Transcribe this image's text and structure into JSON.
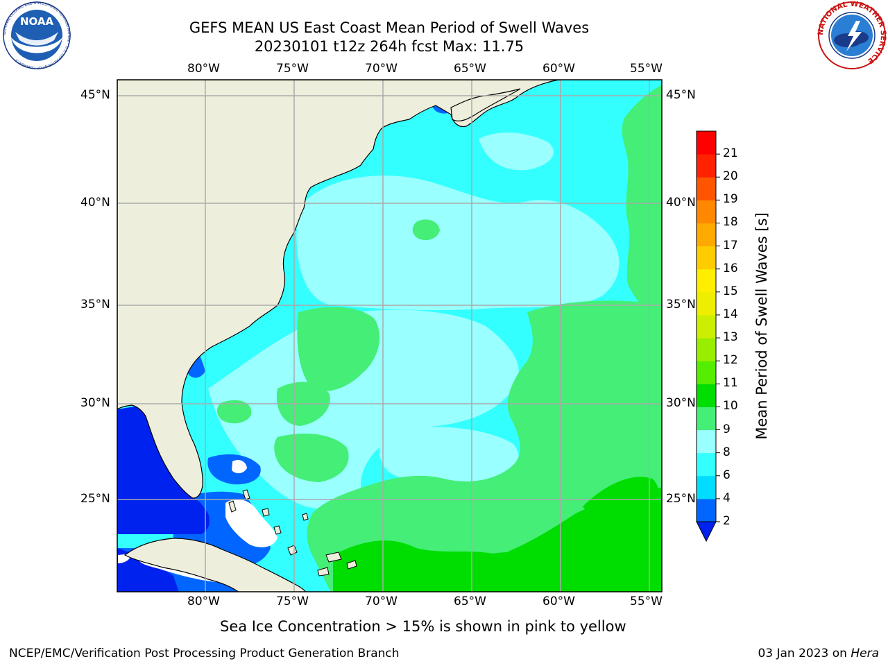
{
  "title": {
    "line1": "GEFS MEAN US East Coast Mean Period of Swell Waves",
    "line2": "20230101 t12z 264h fcst   Max: 11.75"
  },
  "map": {
    "lon_labels": [
      "80°W",
      "75°W",
      "70°W",
      "65°W",
      "60°W",
      "55°W"
    ],
    "lat_labels": [
      "45°N",
      "40°N",
      "35°N",
      "30°N",
      "25°N"
    ],
    "colors": {
      "land": "#EEEEDD",
      "grid": "#AAAAAA",
      "no_data": "#FFFFFF"
    }
  },
  "colorbar": {
    "label": "Mean Period of Swell Waves [s]",
    "tick_labels": [
      "2",
      "4",
      "6",
      "8",
      "9",
      "10",
      "11",
      "12",
      "13",
      "14",
      "15",
      "16",
      "17",
      "18",
      "19",
      "20",
      "21"
    ],
    "colors": [
      "#0066FF",
      "#00DDFF",
      "#33FFFF",
      "#99FFFF",
      "#44EE77",
      "#00DD00",
      "#55EE00",
      "#99EE00",
      "#CCEE00",
      "#EEEE00",
      "#FFEE00",
      "#FFCC00",
      "#FFAA00",
      "#FF8800",
      "#FF5500",
      "#FF2200",
      "#FF0000"
    ],
    "below_color": "#0022EE"
  },
  "logos": {
    "left_text": "NOAA",
    "left_ring": "NATIONAL OCEANIC AND ATMOSPHERIC ADMINISTRATION • U.S. DEPARTMENT OF COMMERCE",
    "right_ring": "NATIONAL WEATHER SERVICE"
  },
  "footer": {
    "note": "Sea Ice Concentration > 15% is shown in pink to yellow",
    "credit": "NCEP/EMC/Verification Post Processing Product Generation Branch",
    "date": "03 Jan 2023 on ",
    "host": "Hera"
  }
}
